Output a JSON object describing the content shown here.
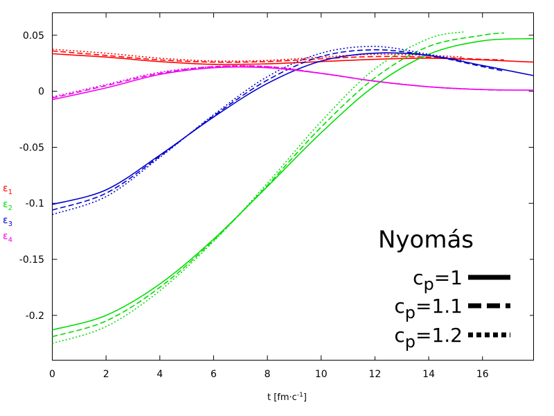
{
  "chart_data": {
    "type": "line",
    "title": "",
    "xlabel": "t [fm·c",
    "xlabel_sup": "-1",
    "xlabel_end": "]",
    "ylabel": "",
    "xlim": [
      0,
      17.9
    ],
    "ylim": [
      -0.24,
      0.07
    ],
    "xticks": [
      0,
      2,
      4,
      6,
      8,
      10,
      12,
      14,
      16
    ],
    "yticks": [
      0.05,
      0,
      -0.05,
      -0.1,
      -0.15,
      -0.2
    ],
    "ytick_labels": [
      "0.05",
      "0",
      "-0.05",
      "-0.1",
      "-0.15",
      "-0.2"
    ],
    "y_labels": [
      {
        "base": "ε",
        "sub": "1",
        "color": "#ff0000"
      },
      {
        "base": "ε",
        "sub": "2",
        "color": "#00dd00"
      },
      {
        "base": "ε",
        "sub": "3",
        "color": "#0000cc"
      },
      {
        "base": "ε",
        "sub": "4",
        "color": "#ee00ee"
      }
    ],
    "legend": {
      "title": "Nyomás",
      "position": "bottom-right",
      "entries": [
        {
          "base": "c",
          "sub": "p",
          "value": "=1",
          "style": "solid"
        },
        {
          "base": "c",
          "sub": "p",
          "value": "=1.1",
          "style": "dashed"
        },
        {
          "base": "c",
          "sub": "p",
          "value": "=1.2",
          "style": "dotted"
        }
      ]
    },
    "series": [
      {
        "name": "ε1 cp=1",
        "color": "#ff0000",
        "style": "solid",
        "x": [
          0,
          2,
          4,
          6,
          8,
          10,
          12,
          14,
          16,
          17.9
        ],
        "y": [
          0.0335,
          0.0305,
          0.0265,
          0.024,
          0.0245,
          0.0265,
          0.0285,
          0.0295,
          0.028,
          0.026
        ]
      },
      {
        "name": "ε1 cp=1.1",
        "color": "#ff0000",
        "style": "dashed",
        "x": [
          0,
          2,
          4,
          6,
          8,
          10,
          12,
          14,
          16,
          16.8
        ],
        "y": [
          0.036,
          0.032,
          0.028,
          0.026,
          0.0265,
          0.029,
          0.031,
          0.0305,
          0.0285,
          0.028
        ]
      },
      {
        "name": "ε1 cp=1.2",
        "color": "#ff0000",
        "style": "dotted",
        "x": [
          0,
          2,
          4,
          6,
          8,
          10,
          12,
          14,
          15.3
        ],
        "y": [
          0.0375,
          0.034,
          0.0295,
          0.027,
          0.0275,
          0.0305,
          0.033,
          0.032,
          0.0305
        ]
      },
      {
        "name": "ε2 cp=1",
        "color": "#00dd00",
        "style": "solid",
        "x": [
          0,
          2,
          4,
          6,
          8,
          10,
          12,
          14,
          16,
          17.9
        ],
        "y": [
          -0.213,
          -0.2,
          -0.172,
          -0.132,
          -0.085,
          -0.037,
          0.005,
          0.033,
          0.045,
          0.047
        ]
      },
      {
        "name": "ε2 cp=1.1",
        "color": "#00dd00",
        "style": "dashed",
        "x": [
          0,
          2,
          4,
          6,
          8,
          10,
          12,
          14,
          16,
          16.8
        ],
        "y": [
          -0.219,
          -0.205,
          -0.175,
          -0.133,
          -0.084,
          -0.032,
          0.012,
          0.04,
          0.05,
          0.052
        ]
      },
      {
        "name": "ε2 cp=1.2",
        "color": "#00dd00",
        "style": "dotted",
        "x": [
          0,
          2,
          4,
          6,
          8,
          10,
          12,
          14,
          15.3
        ],
        "y": [
          -0.225,
          -0.21,
          -0.178,
          -0.134,
          -0.082,
          -0.027,
          0.02,
          0.047,
          0.053
        ]
      },
      {
        "name": "ε3 cp=1",
        "color": "#0000cc",
        "style": "solid",
        "x": [
          0,
          2,
          4,
          6,
          8,
          10,
          12,
          14,
          16,
          17.9
        ],
        "y": [
          -0.101,
          -0.088,
          -0.057,
          -0.023,
          0.007,
          0.027,
          0.034,
          0.032,
          0.023,
          0.014
        ]
      },
      {
        "name": "ε3 cp=1.1",
        "color": "#0000cc",
        "style": "dashed",
        "x": [
          0,
          2,
          4,
          6,
          8,
          10,
          12,
          14,
          16,
          16.8
        ],
        "y": [
          -0.106,
          -0.091,
          -0.058,
          -0.022,
          0.01,
          0.031,
          0.037,
          0.032,
          0.022,
          0.018
        ]
      },
      {
        "name": "ε3 cp=1.2",
        "color": "#0000cc",
        "style": "dotted",
        "x": [
          0,
          2,
          4,
          6,
          8,
          10,
          12,
          14,
          15.3
        ],
        "y": [
          -0.11,
          -0.094,
          -0.059,
          -0.021,
          0.013,
          0.034,
          0.04,
          0.033,
          0.027
        ]
      },
      {
        "name": "ε4 cp=1",
        "color": "#ee00ee",
        "style": "solid",
        "x": [
          0,
          2,
          4,
          6,
          8,
          10,
          12,
          14,
          16,
          17.9
        ],
        "y": [
          -0.0075,
          0.003,
          0.015,
          0.021,
          0.021,
          0.016,
          0.009,
          0.004,
          0.0015,
          0.001
        ]
      },
      {
        "name": "ε4 cp=1.1",
        "color": "#ee00ee",
        "style": "dashed",
        "x": [
          0,
          2,
          4,
          6,
          8,
          10,
          12,
          14,
          16,
          16.8
        ],
        "y": [
          -0.006,
          0.005,
          0.016,
          0.022,
          0.022,
          0.016,
          0.009,
          0.004,
          0.0015,
          0.001
        ]
      },
      {
        "name": "ε4 cp=1.2",
        "color": "#ee00ee",
        "style": "dotted",
        "x": [
          0,
          2,
          4,
          6,
          8,
          10,
          12,
          14,
          15.3
        ],
        "y": [
          -0.005,
          0.006,
          0.017,
          0.022,
          0.022,
          0.016,
          0.009,
          0.004,
          0.002
        ]
      }
    ]
  }
}
